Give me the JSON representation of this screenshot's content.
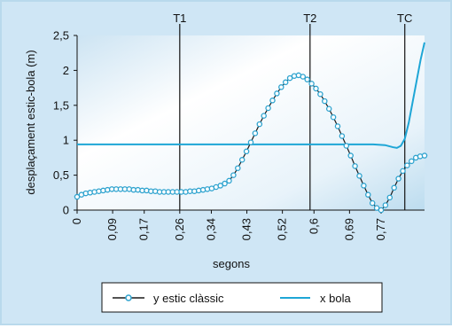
{
  "chart_data": {
    "type": "line",
    "xlabel": "segons",
    "ylabel": "desplaçament estic-bola (m)",
    "x_ticks": [
      "0",
      "0,09",
      "0,17",
      "0,26",
      "0,34",
      "0,43",
      "0,52",
      "0,6",
      "0,69",
      "0,77"
    ],
    "x_tick_values": [
      0,
      0.09,
      0.17,
      0.26,
      0.34,
      0.43,
      0.52,
      0.6,
      0.69,
      0.77
    ],
    "y_ticks": [
      "0",
      "0,5",
      "1",
      "1,5",
      "2",
      "2,5"
    ],
    "y_tick_values": [
      0,
      0.5,
      1,
      1.5,
      2,
      2.5
    ],
    "xlim": [
      0,
      0.88
    ],
    "ylim": [
      0,
      2.5
    ],
    "grid": false,
    "legend_position": "bottom",
    "markers": [
      {
        "label": "T1",
        "x": 0.26
      },
      {
        "label": "T2",
        "x": 0.59
      },
      {
        "label": "TC",
        "x": 0.83
      }
    ],
    "series": [
      {
        "name": "y estic clàssic",
        "style": "line-with-circle-markers",
        "color": "#2ea3cf",
        "line_color": "#1a1a1a",
        "x": [
          0,
          0.011,
          0.022,
          0.033,
          0.044,
          0.055,
          0.066,
          0.077,
          0.088,
          0.099,
          0.11,
          0.121,
          0.132,
          0.143,
          0.154,
          0.165,
          0.176,
          0.187,
          0.198,
          0.209,
          0.22,
          0.231,
          0.242,
          0.253,
          0.264,
          0.275,
          0.286,
          0.297,
          0.308,
          0.319,
          0.33,
          0.341,
          0.352,
          0.363,
          0.374,
          0.385,
          0.396,
          0.407,
          0.418,
          0.429,
          0.44,
          0.451,
          0.462,
          0.473,
          0.484,
          0.495,
          0.506,
          0.517,
          0.528,
          0.539,
          0.55,
          0.561,
          0.572,
          0.583,
          0.594,
          0.605,
          0.616,
          0.627,
          0.638,
          0.649,
          0.66,
          0.671,
          0.682,
          0.693,
          0.704,
          0.715,
          0.726,
          0.737,
          0.748,
          0.759,
          0.77,
          0.781,
          0.792,
          0.803,
          0.814,
          0.825,
          0.836,
          0.847,
          0.858,
          0.869,
          0.88
        ],
        "y": [
          0.19,
          0.22,
          0.24,
          0.25,
          0.26,
          0.27,
          0.28,
          0.29,
          0.3,
          0.3,
          0.3,
          0.3,
          0.3,
          0.29,
          0.29,
          0.28,
          0.28,
          0.27,
          0.27,
          0.26,
          0.26,
          0.26,
          0.26,
          0.26,
          0.26,
          0.26,
          0.27,
          0.27,
          0.28,
          0.29,
          0.3,
          0.31,
          0.33,
          0.35,
          0.38,
          0.42,
          0.5,
          0.6,
          0.72,
          0.84,
          0.97,
          1.1,
          1.23,
          1.35,
          1.46,
          1.57,
          1.67,
          1.76,
          1.83,
          1.89,
          1.92,
          1.93,
          1.91,
          1.87,
          1.81,
          1.74,
          1.66,
          1.56,
          1.45,
          1.33,
          1.2,
          1.06,
          0.92,
          0.78,
          0.63,
          0.49,
          0.35,
          0.22,
          0.1,
          0.03,
          0.0,
          0.07,
          0.18,
          0.32,
          0.45,
          0.56,
          0.64,
          0.7,
          0.75,
          0.77,
          0.78
        ]
      },
      {
        "name": "x bola",
        "style": "line",
        "color": "#1ea6d6",
        "x": [
          0,
          0.75,
          0.78,
          0.8,
          0.81,
          0.82,
          0.83,
          0.84,
          0.85,
          0.86,
          0.87,
          0.88
        ],
        "y": [
          0.94,
          0.94,
          0.93,
          0.9,
          0.89,
          0.92,
          1.02,
          1.25,
          1.55,
          1.85,
          2.15,
          2.4
        ]
      }
    ]
  }
}
